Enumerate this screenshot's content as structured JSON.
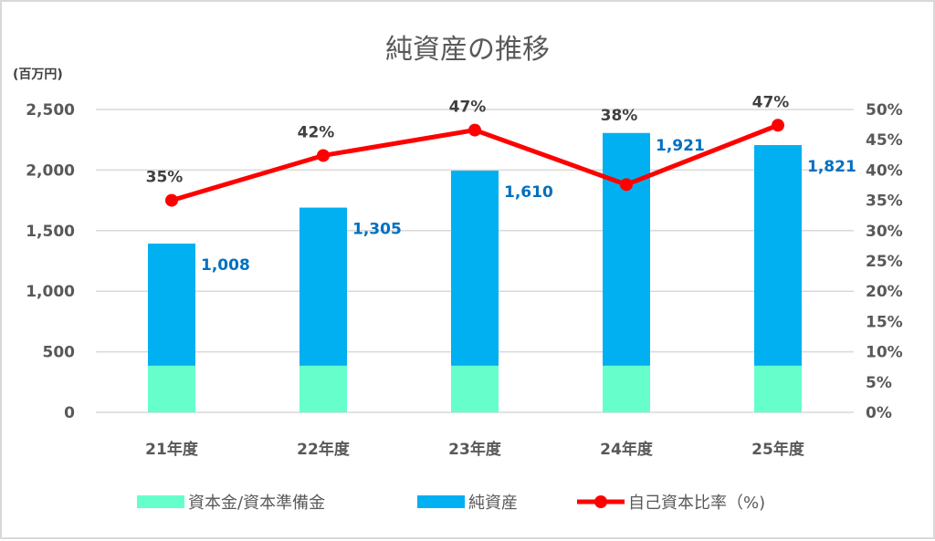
{
  "chart_data": {
    "type": "bar+line",
    "title": "純資産の推移",
    "y_unit_label": "(百万円)",
    "categories": [
      "21年度",
      "22年度",
      "23年度",
      "24年度",
      "25年度"
    ],
    "left_axis": {
      "min": 0,
      "max": 2500,
      "step": 500,
      "ticks": [
        "0",
        "500",
        "1,000",
        "1,500",
        "2,000",
        "2,500"
      ]
    },
    "right_axis": {
      "min": 0,
      "max": 50,
      "step": 5,
      "ticks": [
        "0%",
        "5%",
        "10%",
        "15%",
        "20%",
        "25%",
        "30%",
        "35%",
        "40%",
        "45%",
        "50%"
      ]
    },
    "series": [
      {
        "name": "資本金/資本準備金",
        "type": "stacked-bar",
        "color": "#66ffcc",
        "values": [
          385,
          385,
          385,
          385,
          385
        ]
      },
      {
        "name": "純資産",
        "type": "stacked-bar",
        "color": "#00b0f0",
        "values": [
          1008,
          1305,
          1610,
          1921,
          1821
        ],
        "labels": [
          "1,008",
          "1,305",
          "1,610",
          "1,921",
          "1,821"
        ]
      },
      {
        "name": "自己資本比率（%)",
        "type": "line",
        "axis": "right",
        "color": "#ff0000",
        "values": [
          35.0,
          42.4,
          46.6,
          37.6,
          47.4
        ],
        "labels": [
          "35%",
          "42%",
          "47%",
          "38%",
          "47%"
        ]
      }
    ],
    "grid": true,
    "legend_position": "bottom"
  },
  "legend": {
    "items": [
      {
        "label": "資本金/資本準備金",
        "color": "#66ffcc",
        "kind": "box"
      },
      {
        "label": "純資産",
        "color": "#00b0f0",
        "kind": "box"
      },
      {
        "label": "自己資本比率（%)",
        "color": "#ff0000",
        "kind": "line-marker"
      }
    ]
  },
  "colors": {
    "grid": "#d9d9d9",
    "axis_text": "#595959",
    "value_label": "#0070c0",
    "pct_label": "#404040"
  }
}
